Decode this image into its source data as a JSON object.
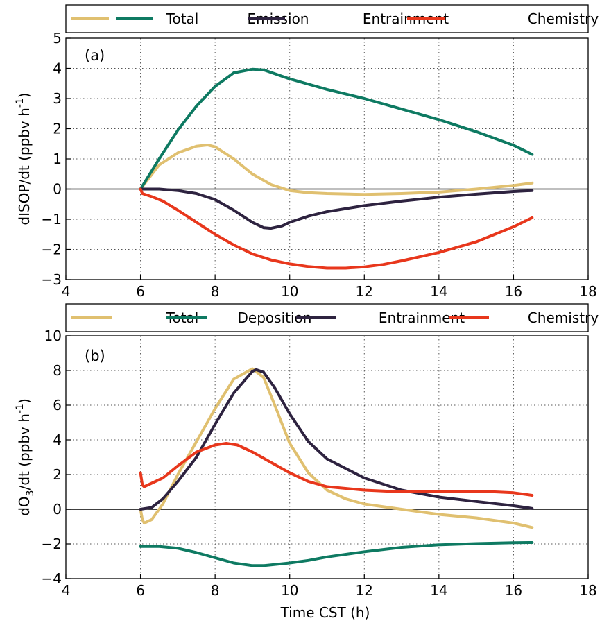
{
  "xlabel": "Time CST (h)",
  "chart_data": [
    {
      "type": "line",
      "panel_label": "(a)",
      "ylabel_main": "dISOP/dt (ppbv h",
      "ylabel_sup": "-1",
      "ylabel_end": ")",
      "xlim": [
        4,
        18
      ],
      "ylim": [
        -3,
        5
      ],
      "xticks": [
        "4",
        "6",
        "8",
        "10",
        "12",
        "14",
        "16",
        "18"
      ],
      "yticks": [
        "−3",
        "−2",
        "−1",
        "0",
        "1",
        "2",
        "3",
        "4",
        "5"
      ],
      "grid": true,
      "legend_position": "top, outside",
      "series": [
        {
          "name": "Total",
          "color": "#e0c070",
          "x": [
            6,
            6.5,
            7,
            7.5,
            7.8,
            8,
            8.5,
            9,
            9.5,
            10,
            10.5,
            11,
            12,
            13,
            14,
            15,
            16,
            16.5
          ],
          "y": [
            0,
            0.8,
            1.2,
            1.42,
            1.46,
            1.4,
            1.0,
            0.5,
            0.15,
            -0.05,
            -0.12,
            -0.15,
            -0.18,
            -0.15,
            -0.1,
            0.0,
            0.12,
            0.2
          ]
        },
        {
          "name": "Emission",
          "color": "#0e7a62",
          "x": [
            6,
            6.5,
            7,
            7.5,
            8,
            8.5,
            9,
            9.3,
            10,
            11,
            12,
            13,
            14,
            15,
            16,
            16.5
          ],
          "y": [
            0,
            1.0,
            1.95,
            2.75,
            3.4,
            3.85,
            3.97,
            3.95,
            3.65,
            3.3,
            3.0,
            2.65,
            2.3,
            1.9,
            1.45,
            1.15
          ]
        },
        {
          "name": "Entrainment",
          "color": "#2e2340",
          "x": [
            6,
            6.5,
            7,
            7.5,
            8,
            8.5,
            9,
            9.3,
            9.5,
            9.8,
            10,
            10.5,
            11,
            12,
            13,
            14,
            15,
            16,
            16.5
          ],
          "y": [
            0,
            0,
            -0.05,
            -0.15,
            -0.35,
            -0.7,
            -1.1,
            -1.28,
            -1.3,
            -1.22,
            -1.1,
            -0.9,
            -0.75,
            -0.55,
            -0.4,
            -0.27,
            -0.17,
            -0.08,
            -0.05
          ]
        },
        {
          "name": "Chemistry",
          "color": "#e8371c",
          "x": [
            6,
            6.05,
            6.3,
            6.6,
            7,
            7.5,
            8,
            8.5,
            9,
            9.5,
            10,
            10.5,
            11,
            11.5,
            12,
            12.5,
            13,
            14,
            15,
            16,
            16.5
          ],
          "y": [
            0,
            -0.15,
            -0.25,
            -0.4,
            -0.7,
            -1.1,
            -1.5,
            -1.85,
            -2.15,
            -2.35,
            -2.48,
            -2.57,
            -2.62,
            -2.62,
            -2.58,
            -2.5,
            -2.38,
            -2.1,
            -1.75,
            -1.25,
            -0.95
          ]
        }
      ]
    },
    {
      "type": "line",
      "panel_label": "(b)",
      "ylabel_main": "dO",
      "ylabel_sub": "3",
      "ylabel_mid": "/dt (ppbv h",
      "ylabel_sup": "-1",
      "ylabel_end": ")",
      "xlim": [
        4,
        18
      ],
      "ylim": [
        -4,
        10
      ],
      "xticks": [
        "4",
        "6",
        "8",
        "10",
        "12",
        "14",
        "16",
        "18"
      ],
      "yticks": [
        "−4",
        "−2",
        "0",
        "2",
        "4",
        "6",
        "8",
        "10"
      ],
      "grid": true,
      "legend_position": "top, outside",
      "series": [
        {
          "name": "Total",
          "color": "#e0c070",
          "x": [
            6,
            6.05,
            6.1,
            6.3,
            6.6,
            7,
            7.5,
            8,
            8.5,
            9,
            9.3,
            9.6,
            10,
            10.5,
            11,
            11.5,
            12,
            13,
            14,
            15,
            16,
            16.5
          ],
          "y": [
            0,
            -0.6,
            -0.8,
            -0.6,
            0.3,
            2.0,
            3.9,
            5.8,
            7.5,
            8.1,
            7.6,
            6.0,
            3.8,
            2.1,
            1.1,
            0.6,
            0.3,
            0.0,
            -0.3,
            -0.5,
            -0.8,
            -1.05
          ]
        },
        {
          "name": "Deposition",
          "color": "#0e7a62",
          "x": [
            6,
            6.5,
            7,
            7.5,
            8,
            8.5,
            9,
            9.3,
            10,
            10.5,
            11,
            12,
            13,
            14,
            15,
            16,
            16.5
          ],
          "y": [
            -2.15,
            -2.15,
            -2.25,
            -2.5,
            -2.8,
            -3.1,
            -3.25,
            -3.25,
            -3.1,
            -2.95,
            -2.75,
            -2.45,
            -2.2,
            -2.05,
            -1.98,
            -1.93,
            -1.92
          ]
        },
        {
          "name": "Entrainment",
          "color": "#2e2340",
          "x": [
            6,
            6.3,
            6.6,
            7,
            7.5,
            8,
            8.5,
            9,
            9.1,
            9.3,
            9.6,
            10,
            10.5,
            11,
            12,
            13,
            14,
            15,
            16,
            16.5
          ],
          "y": [
            0,
            0.1,
            0.6,
            1.6,
            3.0,
            4.9,
            6.7,
            7.95,
            8.05,
            7.9,
            7.0,
            5.5,
            3.9,
            2.9,
            1.8,
            1.1,
            0.7,
            0.45,
            0.2,
            0.05
          ]
        },
        {
          "name": "Chemistry",
          "color": "#e8371c",
          "x": [
            6,
            6.05,
            6.1,
            6.3,
            6.6,
            7,
            7.5,
            8,
            8.3,
            8.6,
            9,
            9.5,
            10,
            10.5,
            11,
            12,
            13,
            14,
            15,
            15.5,
            16,
            16.5
          ],
          "y": [
            2.1,
            1.4,
            1.3,
            1.5,
            1.8,
            2.5,
            3.3,
            3.7,
            3.8,
            3.7,
            3.3,
            2.7,
            2.1,
            1.6,
            1.3,
            1.1,
            1.0,
            1.0,
            1.0,
            1.0,
            0.95,
            0.8
          ]
        }
      ]
    }
  ]
}
